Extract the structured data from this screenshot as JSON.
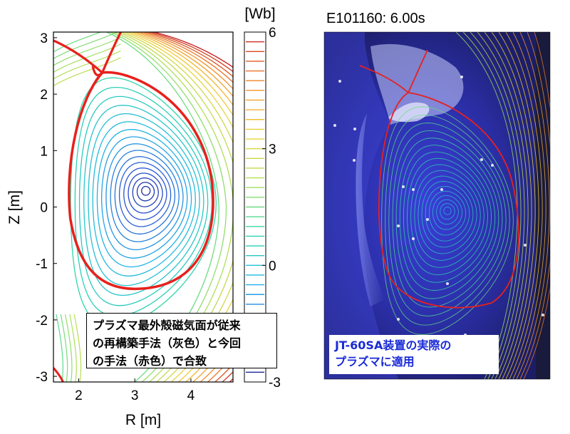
{
  "chart_data": [
    {
      "type": "contour",
      "xlabel": "R [m]",
      "ylabel": "Z [m]",
      "xlim": [
        1.55,
        4.75
      ],
      "ylim": [
        -3.1,
        3.1
      ],
      "xticks": [
        "2",
        "3",
        "4"
      ],
      "yticks": [
        "3",
        "2",
        "1",
        "0",
        "-1",
        "-2",
        "-3"
      ],
      "colorbar": {
        "unit": "[Wb]",
        "range": [
          -3,
          6
        ],
        "ticks": [
          "6",
          "3",
          "0",
          "-3"
        ],
        "colormap": [
          "#1a1f8c",
          "#2a55d6",
          "#22b6e6",
          "#2fd6a8",
          "#aee05a",
          "#f0d23a",
          "#f08a2a",
          "#c81e1e"
        ]
      },
      "magnetic_axis": {
        "r": 3.2,
        "z": 0.3
      },
      "boundary_color_previous": "#808080",
      "boundary_color_new": "#e8201c",
      "annotation": [
        "プラズマ最外殻磁気面が従来",
        "の再構築手法（灰色）と今回",
        "の手法（赤色）で合致"
      ]
    }
  ],
  "photo": {
    "title": "E101160: 6.00s",
    "caption": [
      "JT-60SA装置の実際の",
      "プラズマに適用"
    ],
    "caption_color": "#1a2bd6"
  }
}
